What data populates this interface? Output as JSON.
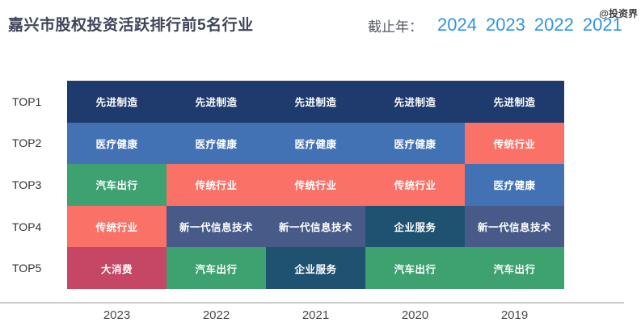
{
  "header": {
    "title": "嘉兴市股权投资活跃排行前5名行业",
    "filter_label": "截止年：",
    "filter_years": [
      "2024",
      "2023",
      "2022",
      "2021"
    ],
    "watermark": "@投资界"
  },
  "chart_data": {
    "type": "table",
    "title": "嘉兴市股权投资活跃排行前5名行业",
    "row_labels": [
      "TOP1",
      "TOP2",
      "TOP3",
      "TOP4",
      "TOP5"
    ],
    "categories": [
      "2023",
      "2022",
      "2021",
      "2020",
      "2019"
    ],
    "columns": [
      {
        "year": "2023",
        "ranking": [
          "先进制造",
          "医疗健康",
          "汽车出行",
          "传统行业",
          "大消费"
        ]
      },
      {
        "year": "2022",
        "ranking": [
          "先进制造",
          "医疗健康",
          "传统行业",
          "新一代信息技术",
          "汽车出行"
        ]
      },
      {
        "year": "2021",
        "ranking": [
          "先进制造",
          "医疗健康",
          "传统行业",
          "新一代信息技术",
          "企业服务"
        ]
      },
      {
        "year": "2020",
        "ranking": [
          "先进制造",
          "医疗健康",
          "传统行业",
          "企业服务",
          "汽车出行"
        ]
      },
      {
        "year": "2019",
        "ranking": [
          "先进制造",
          "传统行业",
          "医疗健康",
          "新一代信息技术",
          "汽车出行"
        ]
      }
    ],
    "industry_colors": {
      "先进制造": "#1f3a6d",
      "医疗健康": "#4272b4",
      "汽车出行": "#3da170",
      "传统行业": "#fa7168",
      "大消费": "#c64666",
      "新一代信息技术": "#475a88",
      "企业服务": "#1e5270"
    },
    "layout": {
      "axis_line_color": "#cccccc",
      "year_link_color": "#2e94e8",
      "grid": "off",
      "legend": "none"
    }
  }
}
